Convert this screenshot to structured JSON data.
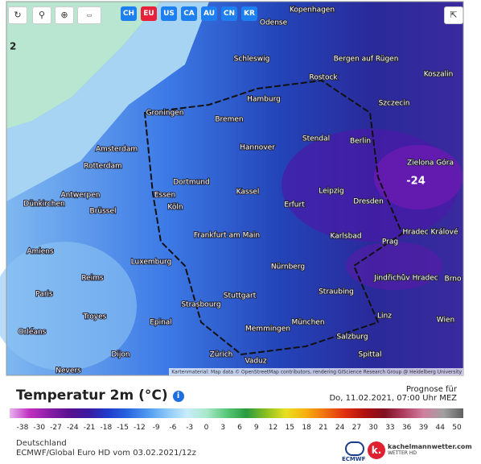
{
  "toolbar": {
    "regions": [
      "CH",
      "EU",
      "US",
      "CA",
      "AU",
      "CN",
      "KR"
    ]
  },
  "map": {
    "corner_label": "2",
    "cities": [
      "Kopenhagen",
      "Odense",
      "Schleswig",
      "Bergen auf Rügen",
      "Rostock",
      "Koszalin",
      "Hamburg",
      "Szczecin",
      "Groningen",
      "Bremen",
      "Amsterdam",
      "Hannover",
      "Stendal",
      "Berlin",
      "Rotterdam",
      "Zielona Góra",
      "Dortmund",
      "Essen",
      "Kassel",
      "Leipzig",
      "Dresden",
      "Antwerpen",
      "Dünkirchen",
      "Brüssel",
      "Köln",
      "Erfurt",
      "Karlsbad",
      "Prag",
      "Hradec Králové",
      "Frankfurt am Main",
      "Amiens",
      "Luxemburg",
      "Nürnberg",
      "Jindřichův Hradec",
      "Brno",
      "Reims",
      "Paris",
      "Stuttgart",
      "Straubing",
      "Troyes",
      "Strasbourg",
      "Linz",
      "Wien",
      "Epinal",
      "München",
      "Memmingen",
      "Salzburg",
      "Orléans",
      "Dijon",
      "Zürich",
      "Vaduz",
      "Nevers",
      "Spittal"
    ],
    "peak_label": "-24",
    "attribution": "Kartenmaterial: Map data © OpenStreetMap contributors, rendering GIScience Research Group @ Heidelberg University"
  },
  "legend": {
    "title": "Temperatur 2m (°C)",
    "forecast_label": "Prognose für",
    "forecast_time": "Do, 11.02.2021, 07:00 Uhr MEZ",
    "ticks": [
      "-38",
      "-30",
      "-27",
      "-24",
      "-21",
      "-18",
      "-15",
      "-12",
      "-9",
      "-6",
      "-3",
      "0",
      "3",
      "6",
      "9",
      "12",
      "15",
      "18",
      "21",
      "24",
      "27",
      "30",
      "33",
      "36",
      "39",
      "44",
      "50"
    ]
  },
  "footer": {
    "region": "Deutschland",
    "model": "ECMWF/Global Euro HD vom 03.02.2021/12z",
    "ecmwf": "ECMWF",
    "brand": "kachelmannwetter.com",
    "brand_sub": "WETTER HD"
  }
}
